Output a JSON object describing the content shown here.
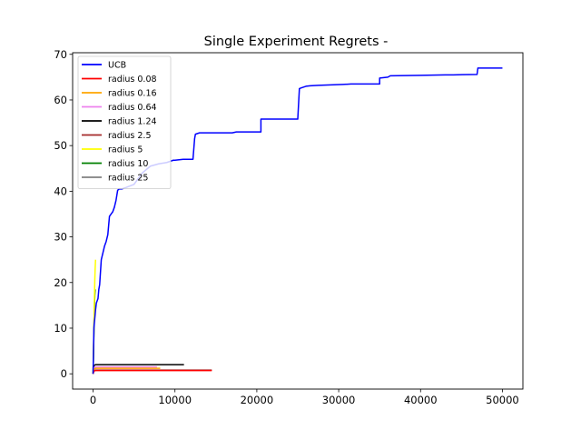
{
  "chart_data": {
    "type": "line",
    "title": "Single Experiment Regrets -",
    "xlabel": "",
    "ylabel": "",
    "xlim": [
      -2500,
      52500
    ],
    "ylim": [
      -3.35,
      70.35
    ],
    "xticks": [
      0,
      10000,
      20000,
      30000,
      40000,
      50000
    ],
    "xtick_labels": [
      "0",
      "10000",
      "20000",
      "30000",
      "40000",
      "50000"
    ],
    "yticks": [
      0,
      10,
      20,
      30,
      40,
      50,
      60,
      70
    ],
    "ytick_labels": [
      "0",
      "10",
      "20",
      "30",
      "40",
      "50",
      "60",
      "70"
    ],
    "grid": false,
    "legend_position": "top-left",
    "series": [
      {
        "name": "UCB",
        "color": "#0000ff",
        "x": [
          0,
          50,
          100,
          200,
          300,
          400,
          500,
          600,
          700,
          800,
          1000,
          1200,
          1400,
          1600,
          1800,
          2000,
          2200,
          2400,
          2600,
          2800,
          3000,
          3200,
          3500,
          4000,
          5000,
          6000,
          7000,
          8000,
          9000,
          9800,
          10000,
          11000,
          11200,
          12200,
          12400,
          12500,
          13000,
          17000,
          17500,
          20500,
          20500,
          24800,
          25000,
          25200,
          25500,
          26000,
          26500,
          27500,
          29000,
          30500,
          31500,
          32000,
          35000,
          35000,
          36000,
          36300,
          40000,
          43000,
          44000,
          46900,
          47000,
          50000
        ],
        "y": [
          0,
          5,
          10,
          12,
          14,
          15.5,
          16,
          16.5,
          18.5,
          19.5,
          25,
          26.5,
          28,
          29,
          30.5,
          34.5,
          35,
          35.5,
          36.5,
          38,
          40.2,
          40.5,
          40.5,
          40.8,
          41.5,
          44,
          45.5,
          46,
          46.3,
          46.8,
          46.8,
          47,
          47,
          47,
          51.5,
          52.5,
          52.8,
          52.8,
          53,
          53,
          55.8,
          55.8,
          55.8,
          62.5,
          62.7,
          63,
          63.1,
          63.2,
          63.3,
          63.4,
          63.5,
          63.5,
          63.5,
          64.8,
          65,
          65.3,
          65.4,
          65.5,
          65.5,
          65.6,
          67,
          67
        ]
      },
      {
        "name": "radius 0.08",
        "color": "#ff0000",
        "x": [
          0,
          50,
          100,
          300,
          7000,
          14500
        ],
        "y": [
          0,
          0.3,
          0.6,
          0.7,
          0.7,
          0.7
        ]
      },
      {
        "name": "radius 0.16",
        "color": "#ffa500",
        "x": [
          0,
          50,
          100,
          300,
          8200
        ],
        "y": [
          0,
          0.5,
          1,
          1.2,
          1.2
        ]
      },
      {
        "name": "radius 0.64",
        "color": "#ee82ee",
        "x": [
          0,
          50,
          100,
          300,
          7800
        ],
        "y": [
          0,
          0.6,
          1.3,
          1.5,
          1.5
        ]
      },
      {
        "name": "radius 1.24",
        "color": "#000000",
        "x": [
          0,
          50,
          100,
          300,
          11100
        ],
        "y": [
          0,
          1,
          1.8,
          2,
          2
        ]
      },
      {
        "name": "radius 2.5",
        "color": "#a52a2a",
        "x": [
          0,
          50,
          100,
          300,
          14500
        ],
        "y": [
          0,
          0.4,
          0.7,
          0.8,
          0.8
        ]
      },
      {
        "name": "radius 5",
        "color": "#ffff00",
        "x": [
          0,
          50,
          100,
          150,
          200,
          250,
          300
        ],
        "y": [
          0,
          5,
          10,
          15,
          20,
          23,
          25
        ]
      },
      {
        "name": "radius 10",
        "color": "#008000",
        "x": [
          0,
          50,
          100,
          150,
          200,
          250
        ],
        "y": [
          0,
          4,
          9,
          14,
          17,
          18.5
        ]
      },
      {
        "name": "radius 25",
        "color": "#808080",
        "x": [
          0,
          30,
          60,
          100,
          150,
          200
        ],
        "y": [
          0,
          3,
          6,
          10,
          14,
          17
        ]
      }
    ]
  }
}
